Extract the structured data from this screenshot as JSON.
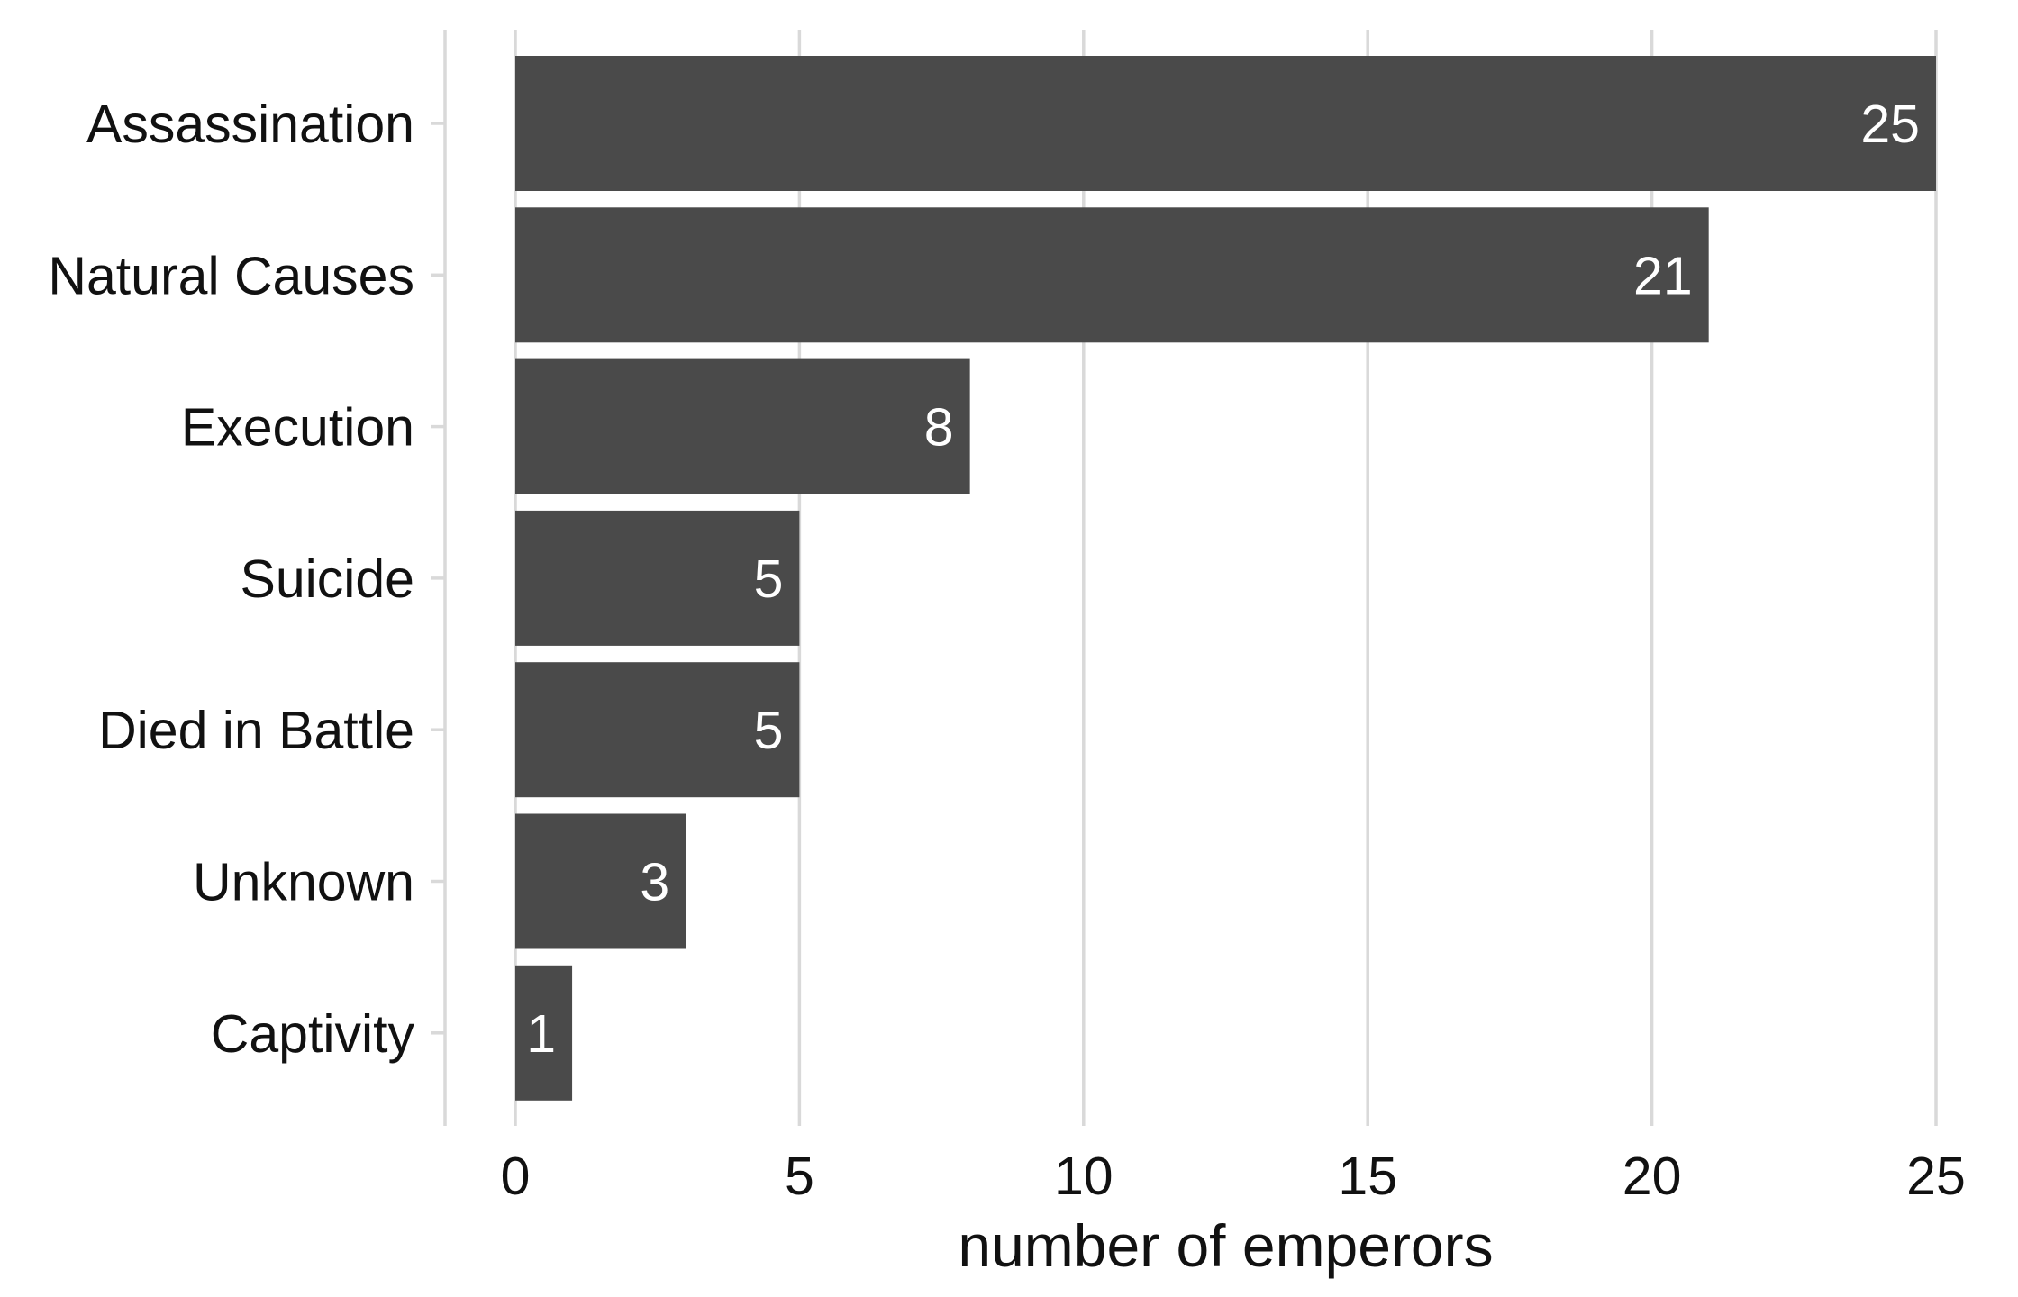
{
  "chart_data": {
    "type": "bar",
    "orientation": "horizontal",
    "categories": [
      "Assassination",
      "Natural Causes",
      "Execution",
      "Suicide",
      "Died in Battle",
      "Unknown",
      "Captivity"
    ],
    "values": [
      25,
      21,
      8,
      5,
      5,
      3,
      1
    ],
    "data_labels": [
      "25",
      "21",
      "8",
      "5",
      "5",
      "3",
      "1"
    ],
    "title": "",
    "xlabel": "number of emperors",
    "ylabel": "",
    "xlim": [
      0,
      25
    ],
    "xticks": [
      0,
      5,
      10,
      15,
      20,
      25
    ],
    "xtick_labels": [
      "0",
      "5",
      "10",
      "15",
      "20",
      "25"
    ],
    "grid": "vertical major",
    "legend": "none",
    "colors": {
      "bar": "#4a4a4a",
      "grid": "#d9d9d9",
      "text": "#111111",
      "data_label": "#ffffff"
    }
  }
}
